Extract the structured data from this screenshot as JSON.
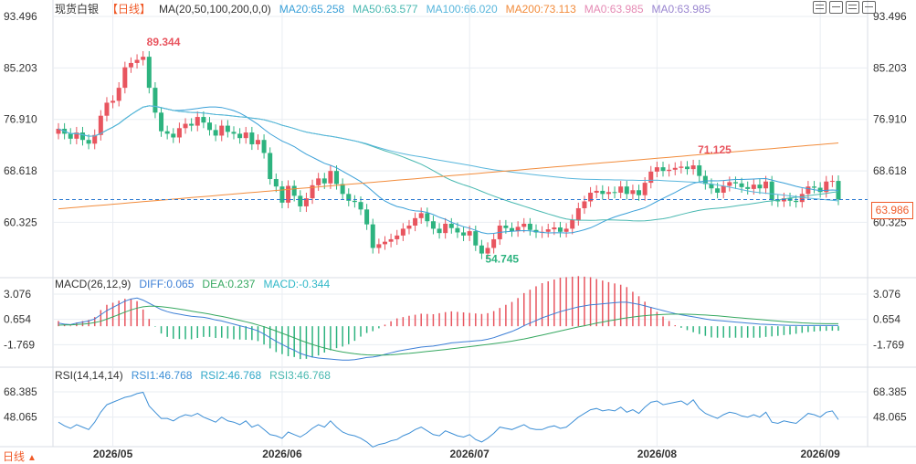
{
  "header": {
    "title": "现货白银",
    "period": "【日线】",
    "ma_label": "MA(20,50,100,200,0,0)",
    "ma_values": [
      {
        "text": "MA20:65.258",
        "color": "#3aa0d8"
      },
      {
        "text": "MA50:63.577",
        "color": "#48b8b0"
      },
      {
        "text": "MA100:66.020",
        "color": "#58b6dc"
      },
      {
        "text": "MA200:73.113",
        "color": "#f28c3c"
      },
      {
        "text": "MA0:63.985",
        "color": "#e58ab4"
      },
      {
        "text": "MA0:63.985",
        "color": "#9a86d0"
      }
    ],
    "toolbar_icons": [
      "chart-icon",
      "layout-icon",
      "settings-icon",
      "expand-icon"
    ]
  },
  "macd_legend": {
    "label": "MACD(26,12,9)",
    "diff": {
      "text": "DIFF:0.065",
      "color": "#3d7fd6"
    },
    "dea": {
      "text": "DEA:0.237",
      "color": "#36a860"
    },
    "macd": {
      "text": "MACD:-0.344",
      "color": "#30b8c8"
    }
  },
  "rsi_legend": {
    "label": "RSI(14,14,14)",
    "rsi1": {
      "text": "RSI1:46.768",
      "color": "#3d8fd6"
    },
    "rsi2": {
      "text": "RSI2:46.768",
      "color": "#30a8c8"
    },
    "rsi3": {
      "text": "RSI3:46.768",
      "color": "#48b8b0"
    }
  },
  "footer": {
    "period": "日线",
    "arrow": "▲"
  },
  "current_price": "63.986",
  "colors": {
    "up": "#e8555f",
    "down": "#2db37f",
    "grid": "#e9edf2",
    "axis_text": "#333333",
    "dash": "#2a78d0"
  },
  "chart_data": {
    "type": "candlestick",
    "title": "现货白银",
    "x_labels": [
      "2026/05",
      "2026/06",
      "2026/07",
      "2026/08",
      "2026/09"
    ],
    "price_ticks": [
      "93.496",
      "85.203",
      "76.910",
      "68.618",
      "60.325"
    ],
    "macd_ticks": [
      "3.076",
      "0.654",
      "-1.769"
    ],
    "rsi_ticks": [
      "68.385",
      "48.065"
    ],
    "annotations": {
      "high": "89.344",
      "low": "54.745",
      "recent_high": "71.125"
    },
    "ylim_price": [
      52.0,
      93.496
    ],
    "ylim_macd": [
      -3.4,
      3.076
    ],
    "ylim_rsi": [
      25,
      75
    ],
    "close": [
      75.4,
      74.6,
      73.8,
      74.8,
      73.6,
      73.0,
      74.4,
      77.5,
      79.6,
      79.9,
      82.0,
      85.3,
      86.0,
      86.5,
      87.0,
      82.0,
      78.0,
      75.0,
      74.6,
      74.0,
      75.5,
      76.2,
      75.9,
      77.3,
      76.4,
      75.2,
      74.3,
      75.9,
      74.9,
      74.6,
      73.9,
      74.8,
      72.9,
      73.6,
      71.5,
      67.3,
      66.1,
      63.5,
      66.2,
      64.6,
      62.9,
      64.2,
      66.3,
      67.4,
      66.6,
      68.6,
      66.5,
      64.9,
      63.8,
      63.6,
      62.4,
      60.0,
      56.2,
      56.8,
      57.2,
      57.6,
      58.2,
      59.3,
      59.8,
      61.0,
      61.8,
      60.5,
      59.3,
      58.6,
      60.1,
      59.4,
      58.7,
      58.2,
      58.9,
      56.6,
      55.3,
      56.2,
      57.6,
      59.8,
      59.4,
      58.9,
      59.6,
      60.1,
      59.1,
      58.7,
      58.8,
      59.2,
      59.5,
      58.8,
      59.3,
      60.7,
      62.6,
      63.7,
      65.1,
      65.4,
      64.9,
      65.2,
      65.1,
      66.1,
      64.9,
      65.5,
      64.7,
      66.7,
      68.5,
      69.2,
      68.6,
      68.8,
      69.1,
      69.3,
      68.9,
      69.5,
      67.8,
      66.5,
      65.8,
      65.1,
      66.2,
      66.8,
      66.6,
      66.0,
      65.7,
      66.4,
      65.8,
      66.9,
      63.9,
      63.7,
      64.2,
      63.8,
      63.6,
      64.9,
      66.1,
      65.9,
      65.2,
      66.9,
      67.0,
      64.0
    ],
    "diff": [
      0.3,
      0.2,
      0.15,
      0.3,
      0.4,
      0.5,
      0.7,
      1.1,
      1.5,
      1.8,
      2.1,
      2.4,
      2.6,
      2.7,
      2.5,
      2.2,
      1.9,
      1.6,
      1.4,
      1.25,
      1.15,
      1.05,
      0.95,
      0.9,
      0.85,
      0.75,
      0.6,
      0.5,
      0.35,
      0.2,
      0.05,
      -0.1,
      -0.25,
      -0.45,
      -0.75,
      -1.1,
      -1.45,
      -1.75,
      -2.05,
      -2.3,
      -2.6,
      -2.8,
      -2.95,
      -3.05,
      -3.1,
      -3.15,
      -3.2,
      -3.25,
      -3.25,
      -3.2,
      -3.1,
      -3.0,
      -2.95,
      -2.85,
      -2.7,
      -2.55,
      -2.4,
      -2.3,
      -2.2,
      -2.1,
      -2.0,
      -1.95,
      -1.9,
      -1.8,
      -1.7,
      -1.6,
      -1.55,
      -1.5,
      -1.45,
      -1.4,
      -1.35,
      -1.25,
      -1.1,
      -0.9,
      -0.7,
      -0.5,
      -0.25,
      0.05,
      0.3,
      0.55,
      0.8,
      1.0,
      1.2,
      1.4,
      1.55,
      1.7,
      1.85,
      1.95,
      2.05,
      2.1,
      2.15,
      2.2,
      2.25,
      2.3,
      2.3,
      2.2,
      2.1,
      1.95,
      1.8,
      1.65,
      1.5,
      1.35,
      1.2,
      1.1,
      1.0,
      0.9,
      0.8,
      0.7,
      0.6,
      0.55,
      0.5,
      0.45,
      0.4,
      0.35,
      0.3,
      0.25,
      0.2,
      0.18,
      0.15,
      0.12,
      0.1,
      0.08,
      0.07,
      0.065,
      0.065,
      0.065,
      0.065,
      0.065,
      0.065,
      0.065
    ],
    "dea": [
      0.1,
      0.12,
      0.13,
      0.16,
      0.2,
      0.26,
      0.35,
      0.48,
      0.68,
      0.9,
      1.12,
      1.35,
      1.56,
      1.74,
      1.86,
      1.92,
      1.92,
      1.88,
      1.81,
      1.73,
      1.64,
      1.55,
      1.45,
      1.35,
      1.26,
      1.16,
      1.05,
      0.94,
      0.82,
      0.7,
      0.56,
      0.42,
      0.28,
      0.12,
      -0.05,
      -0.25,
      -0.46,
      -0.68,
      -0.9,
      -1.12,
      -1.34,
      -1.55,
      -1.75,
      -1.93,
      -2.09,
      -2.23,
      -2.36,
      -2.47,
      -2.56,
      -2.64,
      -2.7,
      -2.74,
      -2.76,
      -2.77,
      -2.76,
      -2.74,
      -2.7,
      -2.65,
      -2.6,
      -2.54,
      -2.48,
      -2.42,
      -2.36,
      -2.3,
      -2.24,
      -2.17,
      -2.1,
      -2.03,
      -1.96,
      -1.89,
      -1.82,
      -1.75,
      -1.68,
      -1.6,
      -1.52,
      -1.43,
      -1.33,
      -1.22,
      -1.1,
      -0.98,
      -0.85,
      -0.72,
      -0.59,
      -0.46,
      -0.33,
      -0.2,
      -0.07,
      0.05,
      0.17,
      0.29,
      0.4,
      0.51,
      0.61,
      0.71,
      0.8,
      0.88,
      0.95,
      1.01,
      1.06,
      1.1,
      1.13,
      1.15,
      1.16,
      1.16,
      1.15,
      1.13,
      1.1,
      1.07,
      1.03,
      0.99,
      0.94,
      0.89,
      0.84,
      0.79,
      0.74,
      0.69,
      0.64,
      0.59,
      0.54,
      0.49,
      0.44,
      0.4,
      0.36,
      0.32,
      0.29,
      0.27,
      0.25,
      0.24,
      0.237,
      0.237
    ],
    "rsi": [
      44,
      41,
      39,
      42,
      40,
      38,
      44,
      52,
      58,
      60,
      62,
      64,
      65,
      67,
      68,
      57,
      52,
      47,
      47,
      45,
      48,
      50,
      49,
      51,
      48,
      46,
      44,
      48,
      45,
      44,
      42,
      45,
      40,
      42,
      38,
      34,
      33,
      31,
      36,
      34,
      32,
      35,
      39,
      42,
      40,
      45,
      40,
      36,
      34,
      33,
      31,
      28,
      24,
      26,
      27,
      29,
      30,
      33,
      35,
      38,
      40,
      37,
      34,
      33,
      37,
      35,
      33,
      32,
      34,
      30,
      28,
      31,
      35,
      40,
      39,
      38,
      40,
      42,
      39,
      38,
      38,
      40,
      41,
      39,
      40,
      44,
      48,
      51,
      54,
      55,
      53,
      54,
      53,
      56,
      52,
      54,
      51,
      56,
      60,
      61,
      58,
      59,
      60,
      61,
      58,
      62,
      55,
      51,
      49,
      47,
      50,
      52,
      51,
      49,
      48,
      50,
      48,
      52,
      44,
      43,
      45,
      44,
      43,
      47,
      51,
      50,
      48,
      52,
      53,
      46
    ]
  }
}
